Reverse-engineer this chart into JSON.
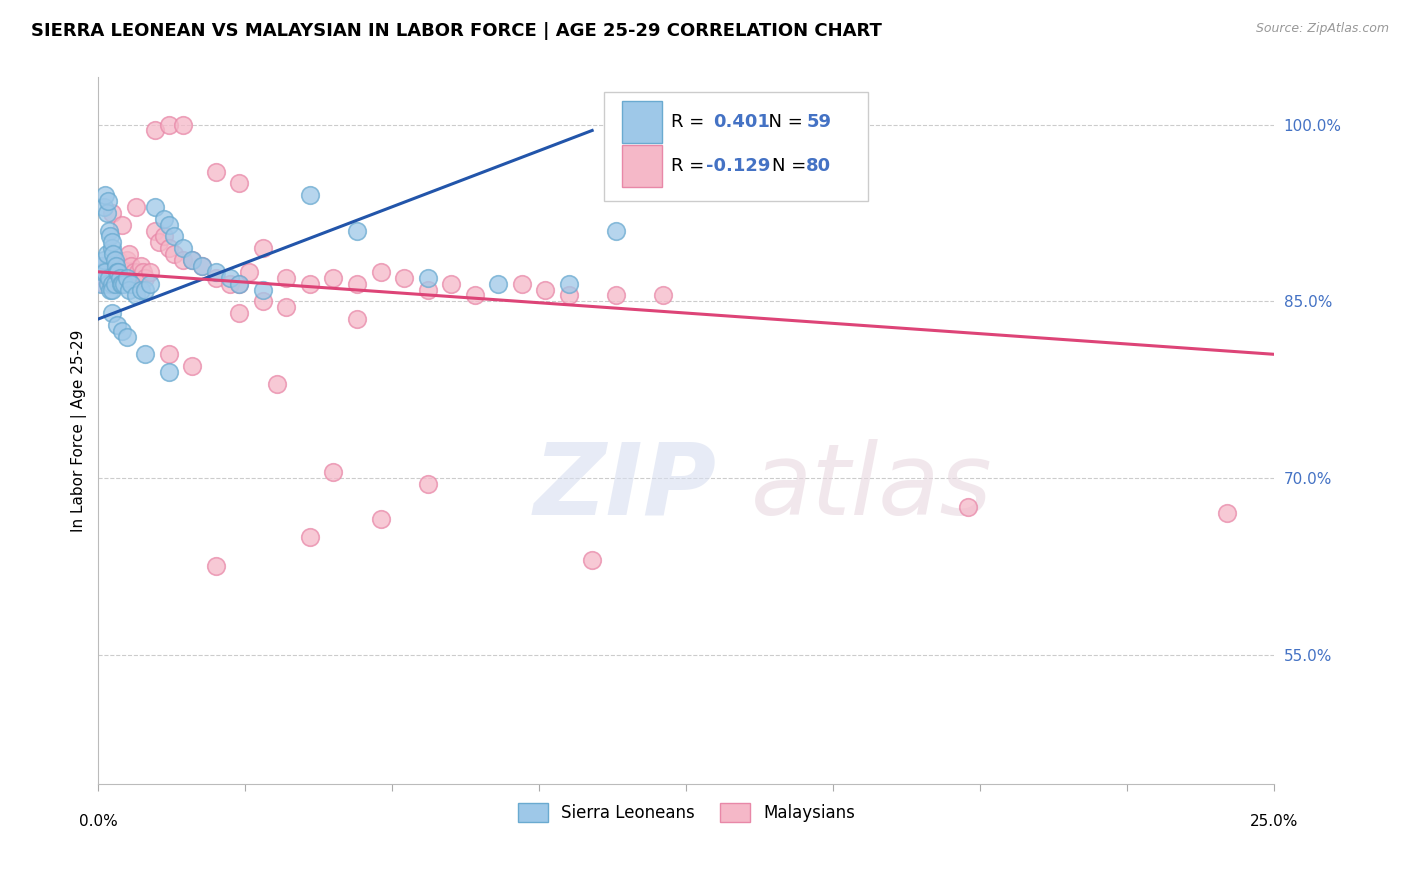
{
  "title": "SIERRA LEONEAN VS MALAYSIAN IN LABOR FORCE | AGE 25-29 CORRELATION CHART",
  "source": "Source: ZipAtlas.com",
  "ylabel": "In Labor Force | Age 25-29",
  "xlim": [
    0.0,
    25.0
  ],
  "ylim": [
    44.0,
    104.0
  ],
  "yticks": [
    55.0,
    70.0,
    85.0,
    100.0
  ],
  "blue_R": 0.401,
  "blue_N": 59,
  "pink_R": -0.129,
  "pink_N": 80,
  "blue_color": "#9ec8e8",
  "pink_color": "#f5b8c8",
  "blue_edge_color": "#6aaad0",
  "pink_edge_color": "#e888a8",
  "blue_line_color": "#2255aa",
  "pink_line_color": "#dd4477",
  "legend_label_blue": "Sierra Leoneans",
  "legend_label_pink": "Malaysians",
  "watermark_zip": "ZIP",
  "watermark_atlas": "atlas",
  "background_color": "#ffffff",
  "blue_trend_x0": 0.0,
  "blue_trend_y0": 83.5,
  "blue_trend_x1": 10.5,
  "blue_trend_y1": 99.5,
  "pink_trend_x0": 0.0,
  "pink_trend_y0": 87.5,
  "pink_trend_x1": 25.0,
  "pink_trend_y1": 80.5,
  "blue_x": [
    0.05,
    0.08,
    0.1,
    0.12,
    0.12,
    0.15,
    0.15,
    0.18,
    0.18,
    0.2,
    0.2,
    0.22,
    0.22,
    0.25,
    0.25,
    0.28,
    0.28,
    0.3,
    0.3,
    0.32,
    0.35,
    0.35,
    0.38,
    0.4,
    0.42,
    0.45,
    0.48,
    0.5,
    0.55,
    0.6,
    0.65,
    0.7,
    0.8,
    0.9,
    1.0,
    1.1,
    1.2,
    1.4,
    1.5,
    1.6,
    1.8,
    2.0,
    2.2,
    2.5,
    2.8,
    3.0,
    1.0,
    1.5,
    3.5,
    4.5,
    5.5,
    7.0,
    8.5,
    10.0,
    11.0,
    0.3,
    0.4,
    0.5,
    0.6
  ],
  "blue_y": [
    86.5,
    88.0,
    87.5,
    88.5,
    93.0,
    94.0,
    87.5,
    92.5,
    89.0,
    93.5,
    86.5,
    91.0,
    87.0,
    90.5,
    86.0,
    89.5,
    86.5,
    90.0,
    86.0,
    89.0,
    88.5,
    86.5,
    88.0,
    87.5,
    87.5,
    87.0,
    86.5,
    86.5,
    86.5,
    87.0,
    86.0,
    86.5,
    85.5,
    86.0,
    86.0,
    86.5,
    93.0,
    92.0,
    91.5,
    90.5,
    89.5,
    88.5,
    88.0,
    87.5,
    87.0,
    86.5,
    80.5,
    79.0,
    86.0,
    94.0,
    91.0,
    87.0,
    86.5,
    86.5,
    91.0,
    84.0,
    83.0,
    82.5,
    82.0
  ],
  "pink_x": [
    0.05,
    0.08,
    0.1,
    0.12,
    0.15,
    0.18,
    0.2,
    0.22,
    0.25,
    0.28,
    0.3,
    0.32,
    0.35,
    0.38,
    0.4,
    0.42,
    0.45,
    0.48,
    0.5,
    0.55,
    0.6,
    0.65,
    0.7,
    0.75,
    0.8,
    0.85,
    0.9,
    0.95,
    1.0,
    1.1,
    1.2,
    1.3,
    1.4,
    1.5,
    1.6,
    1.8,
    2.0,
    2.2,
    2.5,
    2.8,
    3.0,
    3.2,
    3.5,
    4.0,
    4.5,
    5.0,
    5.5,
    6.0,
    7.0,
    8.0,
    9.0,
    10.0,
    11.0,
    12.0,
    3.0,
    3.5,
    4.0,
    5.5,
    6.5,
    7.5,
    0.3,
    0.5,
    0.8,
    1.2,
    1.5,
    1.8,
    2.5,
    3.0,
    9.5,
    18.5,
    1.5,
    2.0,
    3.8,
    5.0,
    7.0,
    10.5,
    2.5,
    4.5,
    6.0,
    24.0
  ],
  "pink_y": [
    88.0,
    87.5,
    87.0,
    86.5,
    87.0,
    87.5,
    88.0,
    87.0,
    86.5,
    87.0,
    87.5,
    87.0,
    88.0,
    87.5,
    87.5,
    88.5,
    88.0,
    87.5,
    87.0,
    87.5,
    88.5,
    89.0,
    88.0,
    87.5,
    87.0,
    87.5,
    88.0,
    87.5,
    87.0,
    87.5,
    91.0,
    90.0,
    90.5,
    89.5,
    89.0,
    88.5,
    88.5,
    88.0,
    87.0,
    86.5,
    86.5,
    87.5,
    89.5,
    87.0,
    86.5,
    87.0,
    86.5,
    87.5,
    86.0,
    85.5,
    86.5,
    85.5,
    85.5,
    85.5,
    84.0,
    85.0,
    84.5,
    83.5,
    87.0,
    86.5,
    92.5,
    91.5,
    93.0,
    99.5,
    100.0,
    100.0,
    96.0,
    95.0,
    86.0,
    67.5,
    80.5,
    79.5,
    78.0,
    70.5,
    69.5,
    63.0,
    62.5,
    65.0,
    66.5,
    67.0
  ]
}
